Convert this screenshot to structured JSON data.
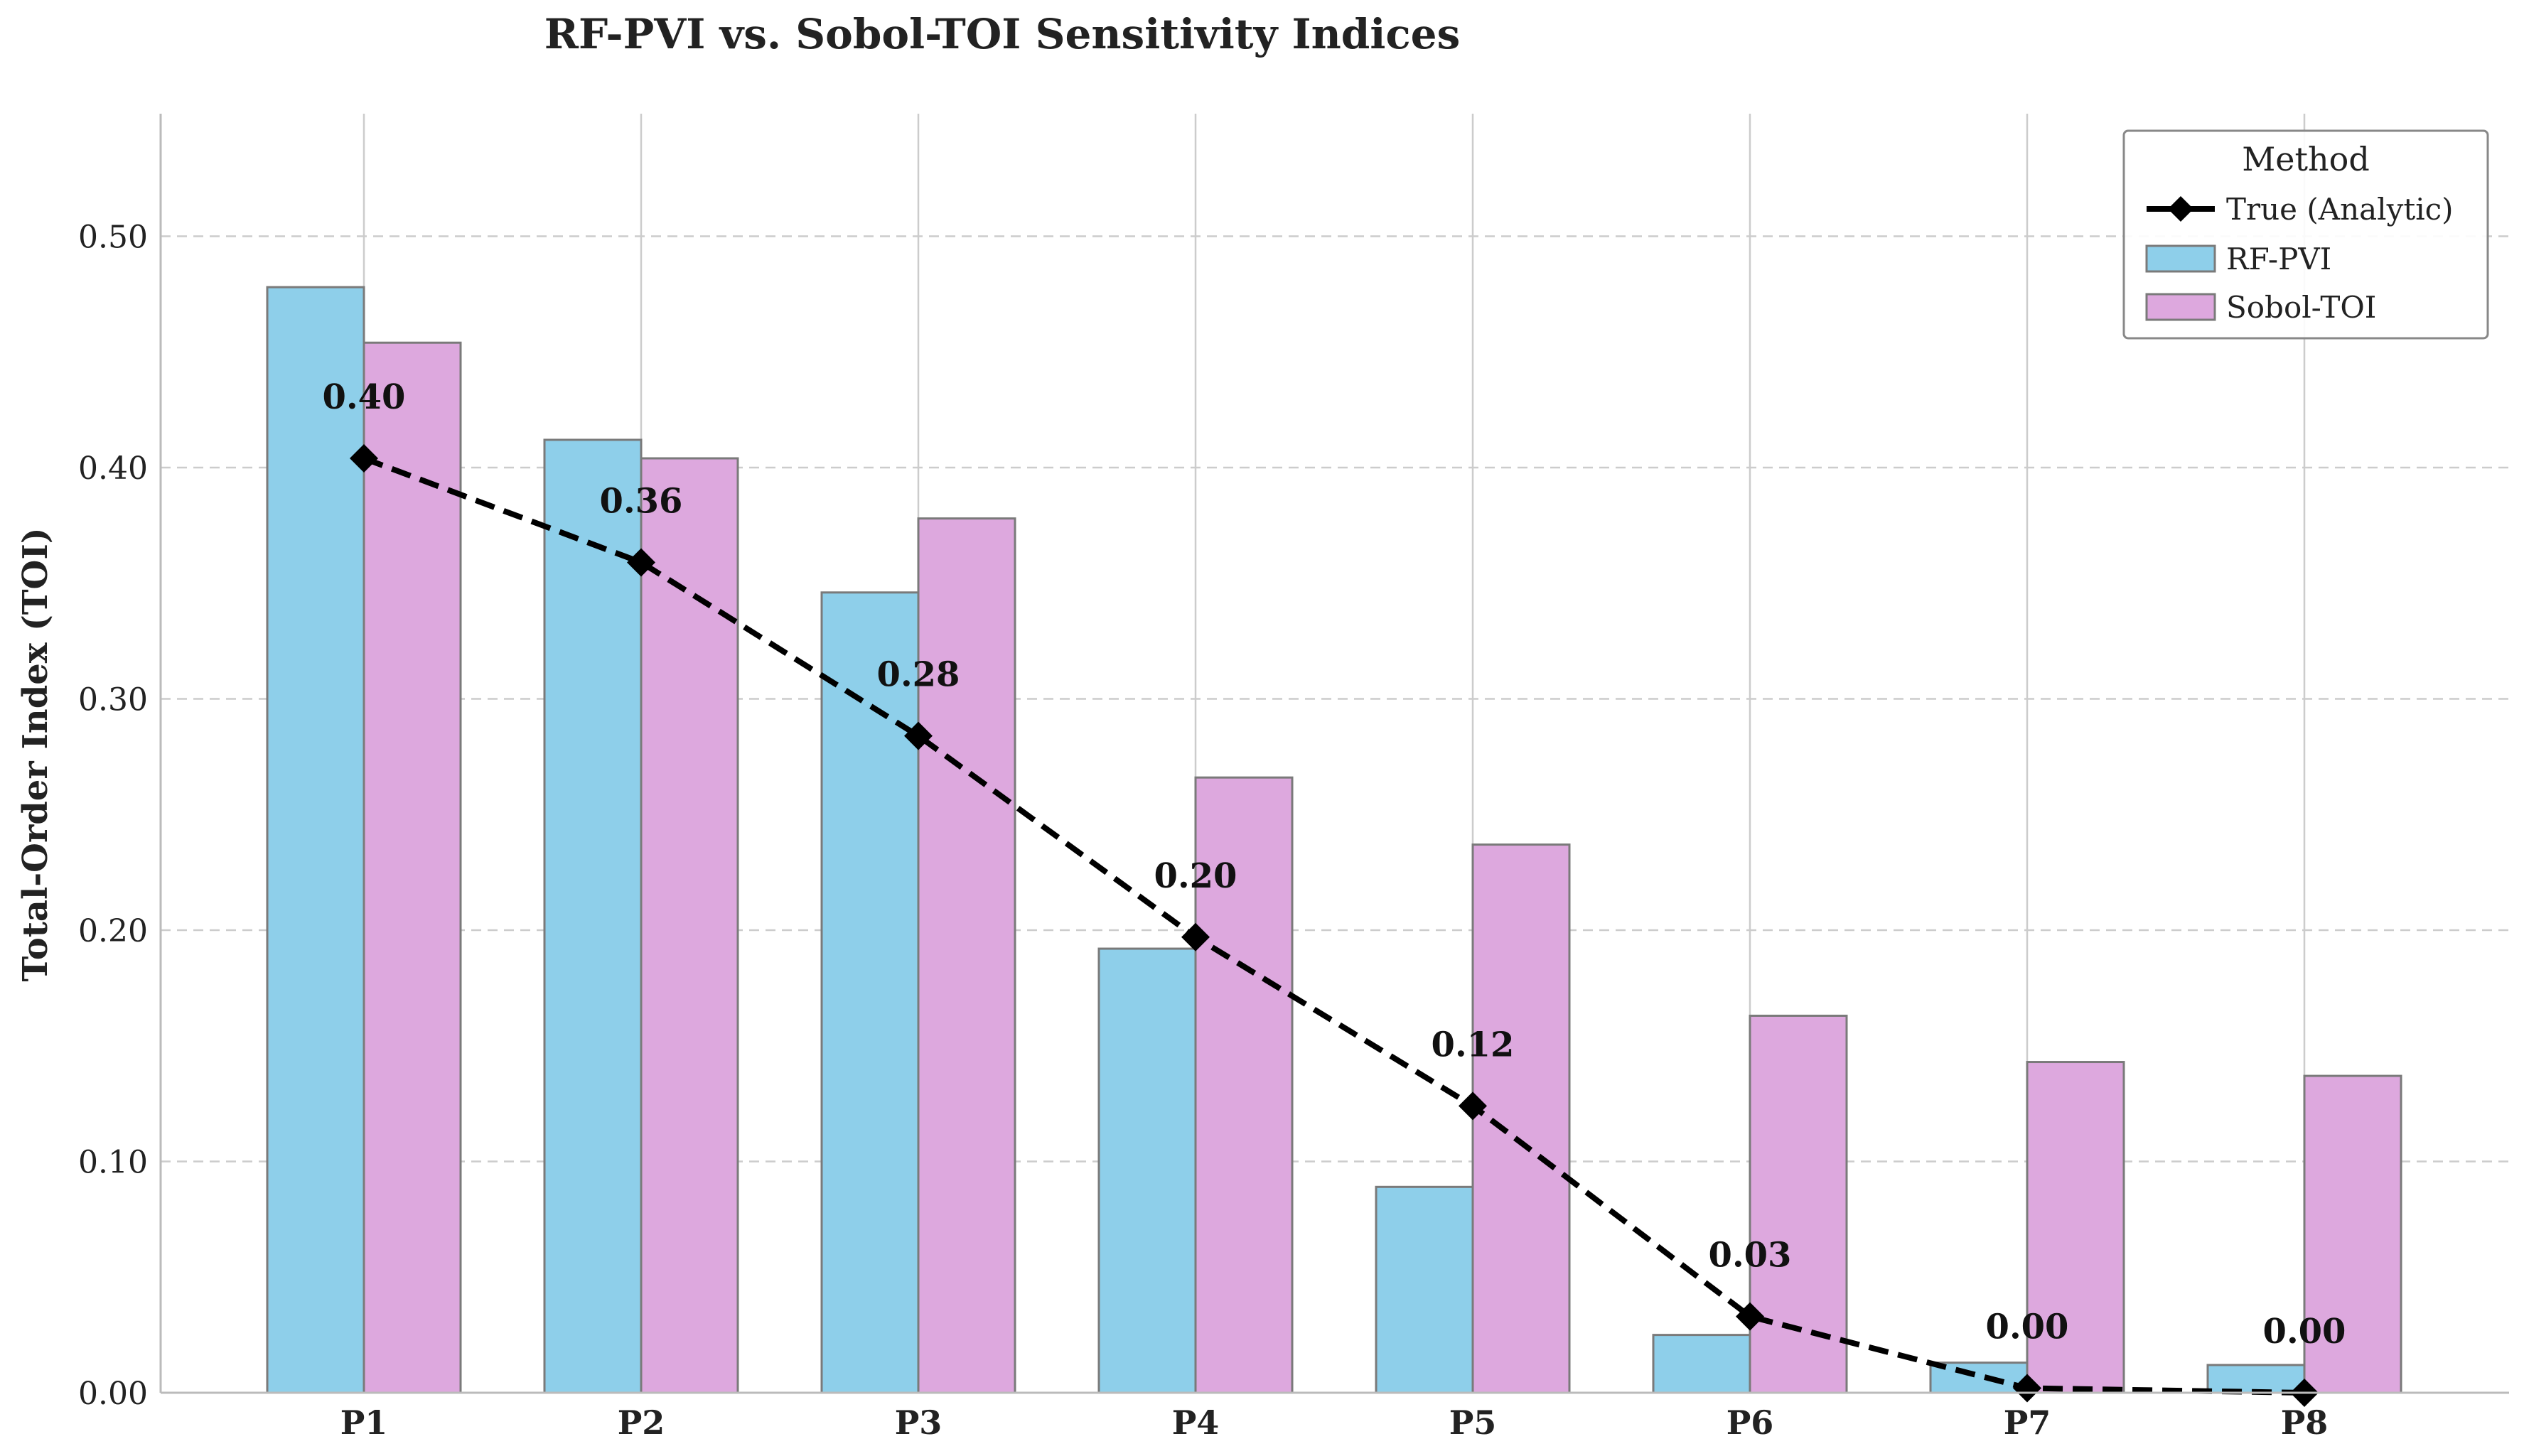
{
  "chart_data": {
    "type": "bar",
    "title": "RF-PVI vs. Sobol-TOI Sensitivity Indices",
    "xlabel": "",
    "ylabel": "Total-Order Index (TOI)",
    "categories": [
      "P1",
      "P2",
      "P3",
      "P4",
      "P5",
      "P6",
      "P7",
      "P8"
    ],
    "ylim": [
      0,
      0.553
    ],
    "yticks": [
      0.0,
      0.1,
      0.2,
      0.3,
      0.4,
      0.5
    ],
    "ytick_labels": [
      "0.00",
      "0.10",
      "0.20",
      "0.30",
      "0.40",
      "0.50"
    ],
    "grid": true,
    "legend": {
      "title": "Method",
      "placement": "top-right"
    },
    "series": [
      {
        "name": "RF-PVI",
        "kind": "bar",
        "color": "#8ecfea",
        "values": [
          0.478,
          0.412,
          0.346,
          0.192,
          0.089,
          0.025,
          0.013,
          0.012
        ]
      },
      {
        "name": "Sobol-TOI",
        "kind": "bar",
        "color": "#dda8de",
        "values": [
          0.454,
          0.404,
          0.378,
          0.266,
          0.237,
          0.163,
          0.143,
          0.137
        ]
      },
      {
        "name": "True (Analytic)",
        "kind": "line",
        "color": "#000000",
        "values": [
          0.404,
          0.359,
          0.284,
          0.197,
          0.124,
          0.033,
          0.002,
          0.0
        ],
        "labels": [
          "0.40",
          "0.36",
          "0.28",
          "0.20",
          "0.12",
          "0.03",
          "0.00",
          "0.00"
        ]
      }
    ]
  }
}
